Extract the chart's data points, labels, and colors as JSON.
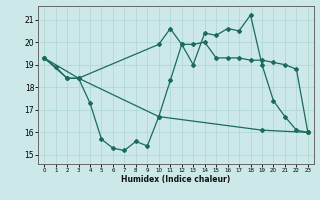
{
  "xlabel": "Humidex (Indice chaleur)",
  "bg_color": "#cce8e8",
  "line_color": "#1a6b5a",
  "grid_color": "#aad4d4",
  "xlim": [
    -0.5,
    23.5
  ],
  "ylim": [
    14.6,
    21.6
  ],
  "yticks": [
    15,
    16,
    17,
    18,
    19,
    20,
    21
  ],
  "xticks": [
    0,
    1,
    2,
    3,
    4,
    5,
    6,
    7,
    8,
    9,
    10,
    11,
    12,
    13,
    14,
    15,
    16,
    17,
    18,
    19,
    20,
    21,
    22,
    23
  ],
  "line1_x": [
    0,
    1,
    2,
    3,
    4,
    5,
    6,
    7,
    8,
    9,
    10,
    11,
    12,
    13,
    14,
    15,
    16,
    17,
    18,
    19,
    20,
    21,
    22,
    23
  ],
  "line1_y": [
    19.3,
    18.9,
    18.4,
    18.4,
    17.3,
    15.7,
    15.3,
    15.2,
    15.6,
    15.4,
    16.7,
    18.3,
    19.9,
    19.0,
    20.4,
    20.3,
    20.6,
    20.5,
    21.2,
    19.0,
    17.4,
    16.7,
    16.1,
    16.0
  ],
  "line2_x": [
    0,
    2,
    3,
    10,
    11,
    12,
    13,
    14,
    15,
    16,
    17,
    18,
    19,
    20,
    21,
    22,
    23
  ],
  "line2_y": [
    19.3,
    18.4,
    18.4,
    19.9,
    20.6,
    19.9,
    19.9,
    20.0,
    19.3,
    19.3,
    19.3,
    19.2,
    19.2,
    19.1,
    19.0,
    18.8,
    16.0
  ],
  "line3_x": [
    0,
    3,
    10,
    19,
    23
  ],
  "line3_y": [
    19.3,
    18.4,
    16.7,
    16.1,
    16.0
  ]
}
